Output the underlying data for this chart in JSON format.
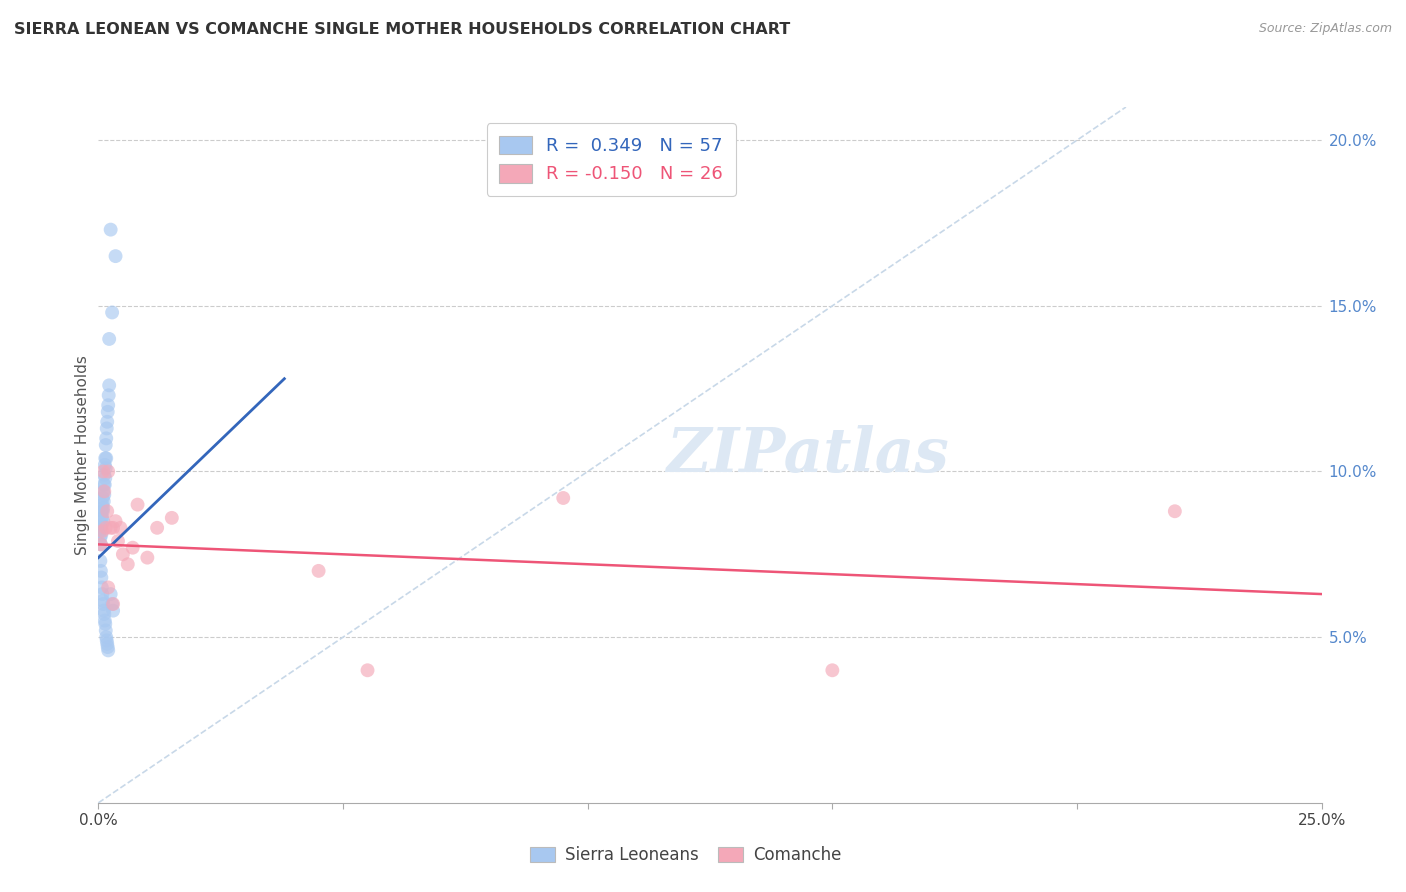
{
  "title": "SIERRA LEONEAN VS COMANCHE SINGLE MOTHER HOUSEHOLDS CORRELATION CHART",
  "source": "Source: ZipAtlas.com",
  "ylabel": "Single Mother Households",
  "xlim": [
    0.0,
    0.25
  ],
  "ylim": [
    0.0,
    0.21
  ],
  "xtick_vals": [
    0.0,
    0.05,
    0.1,
    0.15,
    0.2,
    0.25
  ],
  "ytick_vals": [
    0.05,
    0.1,
    0.15,
    0.2
  ],
  "color_blue": "#A8C8F0",
  "color_pink": "#F4A8B8",
  "line_blue": "#3366BB",
  "line_pink": "#EE5577",
  "diagonal_color": "#C8D8E8",
  "legend_label1": "Sierra Leoneans",
  "legend_label2": "Comanche",
  "sl_x": [
    0.0003,
    0.0004,
    0.0005,
    0.0005,
    0.0006,
    0.0006,
    0.0007,
    0.0007,
    0.0008,
    0.0008,
    0.0009,
    0.0009,
    0.001,
    0.001,
    0.001,
    0.0011,
    0.0011,
    0.0012,
    0.0012,
    0.0013,
    0.0013,
    0.0014,
    0.0014,
    0.0015,
    0.0015,
    0.0016,
    0.0016,
    0.0017,
    0.0018,
    0.0019,
    0.002,
    0.0021,
    0.0022,
    0.0004,
    0.0005,
    0.0006,
    0.0007,
    0.0008,
    0.0009,
    0.001,
    0.0011,
    0.0012,
    0.0013,
    0.0014,
    0.0015,
    0.0016,
    0.0017,
    0.0018,
    0.0019,
    0.002,
    0.0025,
    0.0028,
    0.003,
    0.0035,
    0.0025,
    0.0028,
    0.0022
  ],
  "sl_y": [
    0.082,
    0.08,
    0.083,
    0.078,
    0.086,
    0.081,
    0.088,
    0.084,
    0.09,
    0.086,
    0.092,
    0.088,
    0.094,
    0.089,
    0.085,
    0.096,
    0.091,
    0.099,
    0.093,
    0.102,
    0.096,
    0.104,
    0.098,
    0.108,
    0.101,
    0.11,
    0.104,
    0.113,
    0.115,
    0.118,
    0.12,
    0.123,
    0.126,
    0.073,
    0.07,
    0.068,
    0.065,
    0.063,
    0.061,
    0.06,
    0.058,
    0.057,
    0.055,
    0.054,
    0.052,
    0.05,
    0.049,
    0.048,
    0.047,
    0.046,
    0.063,
    0.06,
    0.058,
    0.165,
    0.173,
    0.148,
    0.14
  ],
  "co_x": [
    0.0005,
    0.0008,
    0.001,
    0.0012,
    0.0015,
    0.0018,
    0.002,
    0.0025,
    0.003,
    0.0035,
    0.004,
    0.0045,
    0.005,
    0.006,
    0.007,
    0.008,
    0.01,
    0.012,
    0.015,
    0.045,
    0.055,
    0.095,
    0.15,
    0.22,
    0.002,
    0.003
  ],
  "co_y": [
    0.078,
    0.082,
    0.1,
    0.094,
    0.083,
    0.088,
    0.1,
    0.083,
    0.083,
    0.085,
    0.079,
    0.083,
    0.075,
    0.072,
    0.077,
    0.09,
    0.074,
    0.083,
    0.086,
    0.07,
    0.04,
    0.092,
    0.04,
    0.088,
    0.065,
    0.06
  ],
  "blue_line_x": [
    0.0,
    0.038
  ],
  "blue_line_y": [
    0.074,
    0.128
  ],
  "pink_line_x": [
    0.0,
    0.25
  ],
  "pink_line_y": [
    0.078,
    0.063
  ]
}
